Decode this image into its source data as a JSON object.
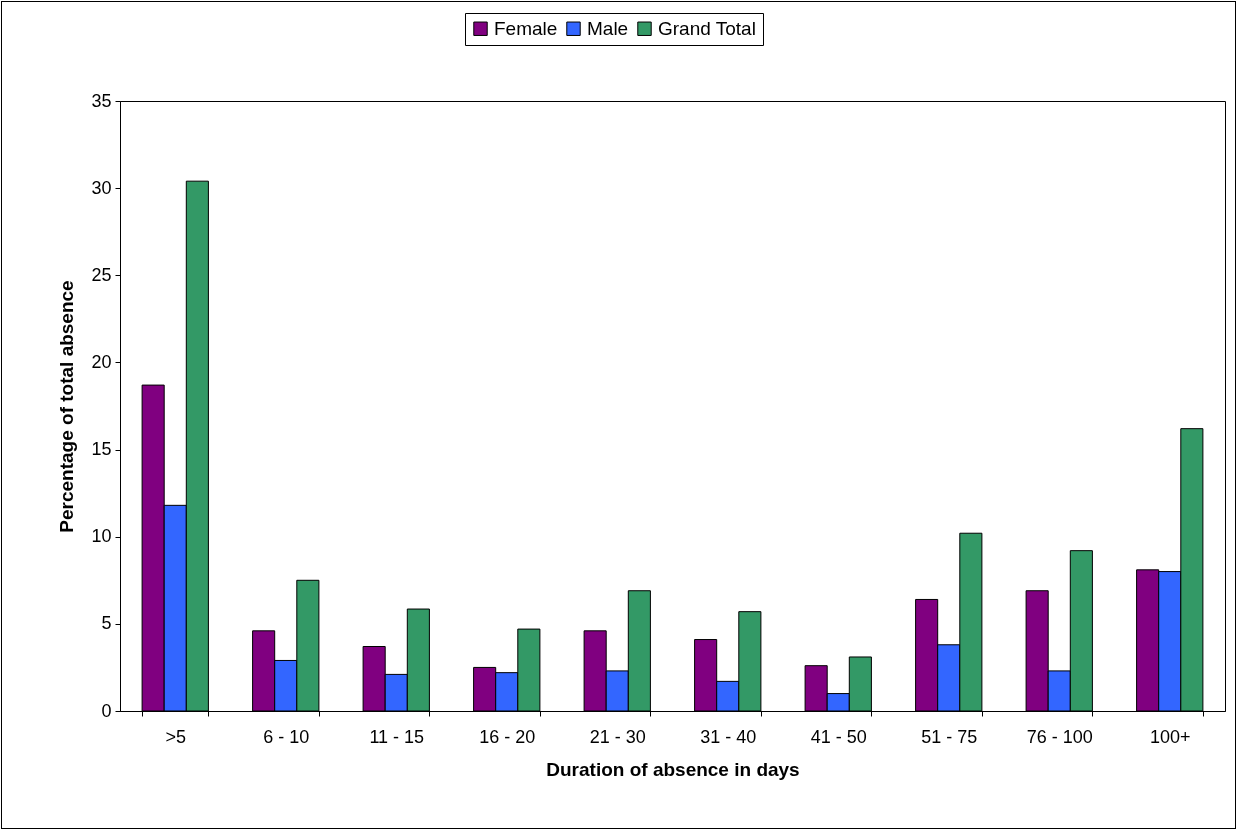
{
  "chart_data": {
    "type": "bar",
    "xlabel": "Duration of absence in days",
    "ylabel": "Percentage of total absence",
    "categories": [
      ">5",
      "6 - 10",
      "11 - 15",
      "16 - 20",
      "21 - 30",
      "31 - 40",
      "41 - 50",
      "51 - 75",
      "76 - 100",
      "100+"
    ],
    "series": [
      {
        "name": "Female",
        "color": "#800080",
        "values": [
          18.7,
          4.6,
          3.7,
          2.5,
          4.6,
          4.1,
          2.6,
          6.4,
          6.9,
          8.1
        ]
      },
      {
        "name": "Male",
        "color": "#3366ff",
        "values": [
          11.8,
          2.9,
          2.1,
          2.2,
          2.3,
          1.7,
          1.0,
          3.8,
          2.3,
          8.0
        ]
      },
      {
        "name": "Grand Total",
        "color": "#339966",
        "values": [
          30.4,
          7.5,
          5.85,
          4.7,
          6.9,
          5.7,
          3.1,
          10.2,
          9.2,
          16.2
        ]
      }
    ],
    "ylim": [
      0,
      35
    ],
    "yticks": [
      0,
      5,
      10,
      15,
      20,
      25,
      30,
      35
    ],
    "grid": false,
    "legend": "top"
  }
}
